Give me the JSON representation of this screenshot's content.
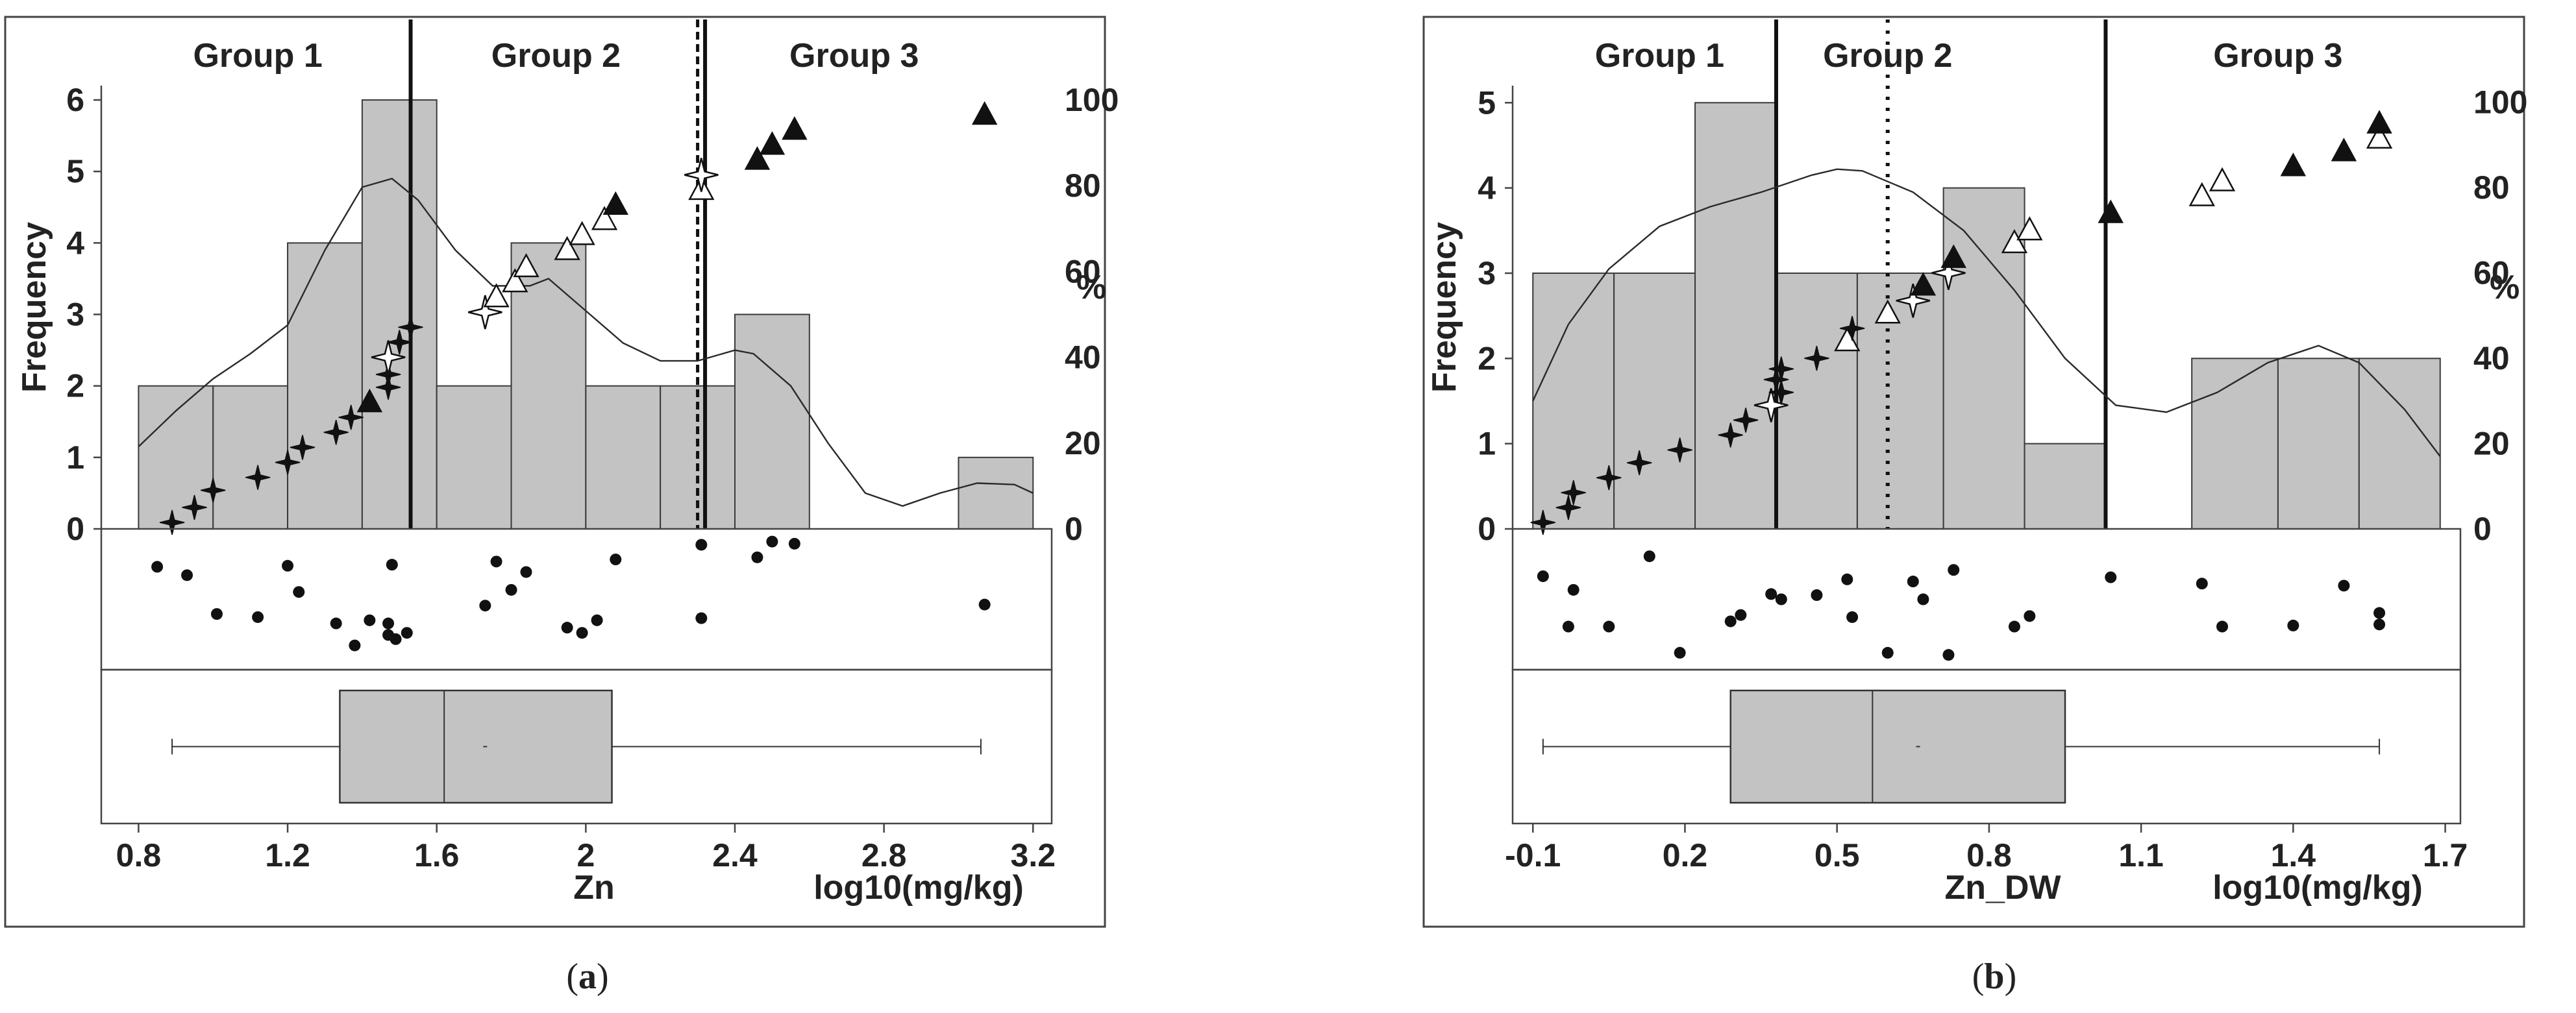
{
  "figure": {
    "captions": [
      {
        "open": "(",
        "letter": "a",
        "close": ")"
      },
      {
        "open": "(",
        "letter": "b",
        "close": ")"
      }
    ]
  },
  "chart_data": [
    {
      "type": "histogram",
      "panel": "a",
      "xlabel": "Zn",
      "unit_label": "log10(mg/kg)",
      "ylabel": "Frequency",
      "y2label": "%",
      "group_labels": [
        "Group 1",
        "Group 2",
        "Group 3"
      ],
      "group_label_x": [
        1.12,
        1.92,
        2.72
      ],
      "xlim": [
        0.7,
        3.25
      ],
      "ylim": [
        0,
        6.2
      ],
      "y2lim": [
        0,
        103.3
      ],
      "xticks": [
        0.8,
        1.2,
        1.6,
        2.0,
        2.4,
        2.8,
        3.2
      ],
      "xtick_labels": [
        "0.8",
        "1.2",
        "1.6",
        "2",
        "2.4",
        "2.8",
        "3.2"
      ],
      "yticks": [
        0,
        1,
        2,
        3,
        4,
        5,
        6
      ],
      "y2ticks": [
        0,
        20,
        40,
        60,
        80,
        100
      ],
      "bins": [
        {
          "x0": 0.8,
          "x1": 1.0,
          "count": 2
        },
        {
          "x0": 1.0,
          "x1": 1.2,
          "count": 2
        },
        {
          "x0": 1.2,
          "x1": 1.4,
          "count": 4
        },
        {
          "x0": 1.4,
          "x1": 1.6,
          "count": 6
        },
        {
          "x0": 1.6,
          "x1": 1.8,
          "count": 2
        },
        {
          "x0": 1.8,
          "x1": 2.0,
          "count": 4
        },
        {
          "x0": 2.0,
          "x1": 2.2,
          "count": 2
        },
        {
          "x0": 2.2,
          "x1": 2.4,
          "count": 2
        },
        {
          "x0": 2.4,
          "x1": 2.6,
          "count": 3
        },
        {
          "x0": 3.0,
          "x1": 3.2,
          "count": 1
        }
      ],
      "density_curve": [
        [
          0.8,
          1.15
        ],
        [
          0.9,
          1.65
        ],
        [
          1.0,
          2.1
        ],
        [
          1.1,
          2.45
        ],
        [
          1.2,
          2.85
        ],
        [
          1.3,
          3.9
        ],
        [
          1.4,
          4.78
        ],
        [
          1.48,
          4.9
        ],
        [
          1.55,
          4.6
        ],
        [
          1.65,
          3.9
        ],
        [
          1.75,
          3.4
        ],
        [
          1.85,
          3.4
        ],
        [
          1.9,
          3.5
        ],
        [
          2.0,
          3.05
        ],
        [
          2.1,
          2.6
        ],
        [
          2.2,
          2.35
        ],
        [
          2.3,
          2.35
        ],
        [
          2.4,
          2.5
        ],
        [
          2.45,
          2.45
        ],
        [
          2.55,
          2.0
        ],
        [
          2.65,
          1.2
        ],
        [
          2.75,
          0.5
        ],
        [
          2.85,
          0.32
        ],
        [
          2.95,
          0.5
        ],
        [
          3.05,
          0.64
        ],
        [
          3.15,
          0.62
        ],
        [
          3.2,
          0.5
        ]
      ],
      "cdf_points": [
        {
          "x": 0.89,
          "pct": 1.5,
          "m": "cross"
        },
        {
          "x": 0.95,
          "pct": 5,
          "m": "cross"
        },
        {
          "x": 1.0,
          "pct": 9,
          "m": "cross"
        },
        {
          "x": 1.12,
          "pct": 12,
          "m": "cross"
        },
        {
          "x": 1.2,
          "pct": 15.5,
          "m": "cross"
        },
        {
          "x": 1.24,
          "pct": 19,
          "m": "cross"
        },
        {
          "x": 1.33,
          "pct": 22.5,
          "m": "cross"
        },
        {
          "x": 1.37,
          "pct": 26,
          "m": "cross"
        },
        {
          "x": 1.42,
          "pct": 29.5,
          "m": "tri"
        },
        {
          "x": 1.47,
          "pct": 33,
          "m": "cross"
        },
        {
          "x": 1.47,
          "pct": 36,
          "m": "cross"
        },
        {
          "x": 1.47,
          "pct": 40,
          "m": "star"
        },
        {
          "x": 1.5,
          "pct": 43.5,
          "m": "cross"
        },
        {
          "x": 1.53,
          "pct": 47,
          "m": "cross"
        },
        {
          "x": 1.73,
          "pct": 50.5,
          "m": "star"
        },
        {
          "x": 1.76,
          "pct": 54,
          "m": "tri_open"
        },
        {
          "x": 1.81,
          "pct": 57.5,
          "m": "tri_open"
        },
        {
          "x": 1.84,
          "pct": 61,
          "m": "tri_open"
        },
        {
          "x": 1.95,
          "pct": 65,
          "m": "tri_open"
        },
        {
          "x": 1.99,
          "pct": 68.5,
          "m": "tri_open"
        },
        {
          "x": 2.05,
          "pct": 72,
          "m": "tri_open"
        },
        {
          "x": 2.08,
          "pct": 75.5,
          "m": "tri"
        },
        {
          "x": 2.31,
          "pct": 79,
          "m": "tri_open"
        },
        {
          "x": 2.31,
          "pct": 82.5,
          "m": "star"
        },
        {
          "x": 2.46,
          "pct": 86,
          "m": "tri"
        },
        {
          "x": 2.5,
          "pct": 89.5,
          "m": "tri"
        },
        {
          "x": 2.56,
          "pct": 93,
          "m": "tri"
        },
        {
          "x": 3.07,
          "pct": 96.5,
          "m": "tri"
        }
      ],
      "vlines": [
        {
          "x": 1.53,
          "style": "solid"
        },
        {
          "x": 2.3,
          "style": "dashed"
        },
        {
          "x": 2.32,
          "style": "solid"
        }
      ],
      "jitter_points": [
        [
          0.85,
          0.87
        ],
        [
          0.93,
          0.79
        ],
        [
          1.01,
          0.42
        ],
        [
          1.12,
          0.39
        ],
        [
          1.2,
          0.88
        ],
        [
          1.23,
          0.63
        ],
        [
          1.33,
          0.33
        ],
        [
          1.38,
          0.12
        ],
        [
          1.42,
          0.36
        ],
        [
          1.47,
          0.33
        ],
        [
          1.47,
          0.22
        ],
        [
          1.49,
          0.18
        ],
        [
          1.48,
          0.89
        ],
        [
          1.52,
          0.24
        ],
        [
          1.73,
          0.5
        ],
        [
          1.76,
          0.92
        ],
        [
          1.8,
          0.65
        ],
        [
          1.84,
          0.82
        ],
        [
          1.95,
          0.29
        ],
        [
          1.99,
          0.24
        ],
        [
          2.03,
          0.36
        ],
        [
          2.08,
          0.94
        ],
        [
          2.31,
          1.08
        ],
        [
          2.31,
          0.38
        ],
        [
          2.46,
          0.96
        ],
        [
          2.5,
          1.11
        ],
        [
          2.56,
          1.09
        ],
        [
          3.07,
          0.51
        ]
      ],
      "boxplot": {
        "min": 0.89,
        "q1": 1.34,
        "median": 1.62,
        "mean": 1.73,
        "q3": 2.07,
        "max": 3.06
      }
    },
    {
      "type": "histogram",
      "panel": "b",
      "xlabel": "Zn_DW",
      "unit_label": "log10(mg/kg)",
      "ylabel": "Frequency",
      "y2label": "%",
      "group_labels": [
        "Group 1",
        "Group 2",
        "Group 3"
      ],
      "group_label_x": [
        0.15,
        0.6,
        1.37
      ],
      "xlim": [
        -0.14,
        1.73
      ],
      "ylim": [
        0,
        5.2
      ],
      "y2lim": [
        0,
        103.9
      ],
      "xticks": [
        -0.1,
        0.2,
        0.5,
        0.8,
        1.1,
        1.4,
        1.7
      ],
      "xtick_labels": [
        "-0.1",
        "0.2",
        "0.5",
        "0.8",
        "1.1",
        "1.4",
        "1.7"
      ],
      "yticks": [
        0,
        1,
        2,
        3,
        4,
        5
      ],
      "y2ticks": [
        0,
        20,
        40,
        60,
        80,
        100
      ],
      "bins": [
        {
          "x0": -0.1,
          "x1": 0.06,
          "count": 3
        },
        {
          "x0": 0.06,
          "x1": 0.22,
          "count": 3
        },
        {
          "x0": 0.22,
          "x1": 0.38,
          "count": 5
        },
        {
          "x0": 0.38,
          "x1": 0.54,
          "count": 3
        },
        {
          "x0": 0.54,
          "x1": 0.71,
          "count": 3
        },
        {
          "x0": 0.71,
          "x1": 0.87,
          "count": 4
        },
        {
          "x0": 0.87,
          "x1": 1.03,
          "count": 1
        },
        {
          "x0": 1.2,
          "x1": 1.37,
          "count": 2
        },
        {
          "x0": 1.37,
          "x1": 1.53,
          "count": 2
        },
        {
          "x0": 1.53,
          "x1": 1.69,
          "count": 2
        }
      ],
      "density_curve": [
        [
          -0.1,
          1.5
        ],
        [
          -0.03,
          2.4
        ],
        [
          0.05,
          3.05
        ],
        [
          0.15,
          3.55
        ],
        [
          0.25,
          3.78
        ],
        [
          0.35,
          3.95
        ],
        [
          0.45,
          4.15
        ],
        [
          0.5,
          4.22
        ],
        [
          0.55,
          4.2
        ],
        [
          0.65,
          3.95
        ],
        [
          0.75,
          3.5
        ],
        [
          0.85,
          2.8
        ],
        [
          0.95,
          2.0
        ],
        [
          1.05,
          1.45
        ],
        [
          1.15,
          1.37
        ],
        [
          1.25,
          1.6
        ],
        [
          1.35,
          1.95
        ],
        [
          1.45,
          2.15
        ],
        [
          1.53,
          1.95
        ],
        [
          1.62,
          1.4
        ],
        [
          1.69,
          0.85
        ]
      ],
      "cdf_points": [
        {
          "x": -0.08,
          "pct": 1.5,
          "m": "cross"
        },
        {
          "x": -0.03,
          "pct": 5,
          "m": "cross"
        },
        {
          "x": -0.02,
          "pct": 8.5,
          "m": "cross"
        },
        {
          "x": 0.05,
          "pct": 12,
          "m": "cross"
        },
        {
          "x": 0.11,
          "pct": 15.5,
          "m": "cross"
        },
        {
          "x": 0.19,
          "pct": 18.5,
          "m": "cross"
        },
        {
          "x": 0.29,
          "pct": 22,
          "m": "cross"
        },
        {
          "x": 0.32,
          "pct": 25.5,
          "m": "cross"
        },
        {
          "x": 0.37,
          "pct": 29,
          "m": "star"
        },
        {
          "x": 0.39,
          "pct": 32,
          "m": "cross"
        },
        {
          "x": 0.38,
          "pct": 35,
          "m": "cross"
        },
        {
          "x": 0.39,
          "pct": 37.5,
          "m": "cross"
        },
        {
          "x": 0.46,
          "pct": 40,
          "m": "cross"
        },
        {
          "x": 0.52,
          "pct": 44,
          "m": "tri_open"
        },
        {
          "x": 0.53,
          "pct": 47,
          "m": "cross"
        },
        {
          "x": 0.6,
          "pct": 50.5,
          "m": "tri_open"
        },
        {
          "x": 0.65,
          "pct": 53.5,
          "m": "star"
        },
        {
          "x": 0.67,
          "pct": 57,
          "m": "tri"
        },
        {
          "x": 0.72,
          "pct": 60,
          "m": "star"
        },
        {
          "x": 0.73,
          "pct": 63.5,
          "m": "tri"
        },
        {
          "x": 0.85,
          "pct": 67,
          "m": "tri_open"
        },
        {
          "x": 0.88,
          "pct": 70,
          "m": "tri_open"
        },
        {
          "x": 1.04,
          "pct": 74,
          "m": "tri"
        },
        {
          "x": 1.22,
          "pct": 78,
          "m": "tri_open"
        },
        {
          "x": 1.26,
          "pct": 81.5,
          "m": "tri_open"
        },
        {
          "x": 1.4,
          "pct": 85,
          "m": "tri"
        },
        {
          "x": 1.5,
          "pct": 88.5,
          "m": "tri"
        },
        {
          "x": 1.57,
          "pct": 91.5,
          "m": "tri_open"
        },
        {
          "x": 1.57,
          "pct": 95,
          "m": "tri"
        }
      ],
      "vlines": [
        {
          "x": 0.38,
          "style": "solid"
        },
        {
          "x": 0.6,
          "style": "dotted"
        },
        {
          "x": 1.03,
          "style": "solid"
        }
      ],
      "jitter_points": [
        [
          -0.08,
          0.78
        ],
        [
          -0.02,
          0.65
        ],
        [
          -0.03,
          0.3
        ],
        [
          0.05,
          0.3
        ],
        [
          0.13,
          0.97
        ],
        [
          0.19,
          0.05
        ],
        [
          0.29,
          0.35
        ],
        [
          0.31,
          0.41
        ],
        [
          0.37,
          0.61
        ],
        [
          0.39,
          0.56
        ],
        [
          0.46,
          0.6
        ],
        [
          0.52,
          0.75
        ],
        [
          0.53,
          0.39
        ],
        [
          0.6,
          0.05
        ],
        [
          0.65,
          0.73
        ],
        [
          0.67,
          0.56
        ],
        [
          0.72,
          0.03
        ],
        [
          0.73,
          0.84
        ],
        [
          0.85,
          0.3
        ],
        [
          0.88,
          0.4
        ],
        [
          1.04,
          0.77
        ],
        [
          1.22,
          0.71
        ],
        [
          1.26,
          0.3
        ],
        [
          1.4,
          0.31
        ],
        [
          1.5,
          0.69
        ],
        [
          1.57,
          0.32
        ],
        [
          1.57,
          0.43
        ]
      ],
      "boxplot": {
        "min": -0.08,
        "q1": 0.29,
        "median": 0.57,
        "mean": 0.66,
        "q3": 0.95,
        "max": 1.57
      }
    }
  ]
}
